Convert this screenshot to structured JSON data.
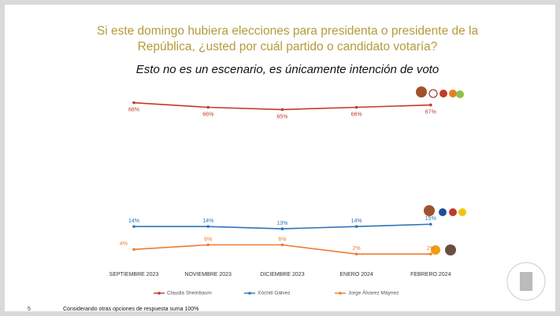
{
  "page_number": "5",
  "chart_data": {
    "type": "line",
    "title": "Si este domingo hubiera elecciones para presidenta o presidente de la República, ¿usted por cuál partido o candidato votaría?",
    "subtitle": "Esto no es un escenario, es únicamente intención de voto",
    "note": "Considerando otras opciones de respuesta suma 100%",
    "categories": [
      "SEPTIEMBRE 2023",
      "NOVIEMBRE 2023",
      "DICIEMBRE 2023",
      "ENERO 2024",
      "FEBRERO 2024"
    ],
    "ylim": [
      0,
      72
    ],
    "legend": "bottom",
    "series": [
      {
        "name": "Claudia Sheinbaum",
        "color": "#c0392b",
        "values": [
          68,
          66,
          65,
          66,
          67
        ],
        "value_labels": [
          "68%",
          "66%",
          "65%",
          "66%",
          "67%"
        ]
      },
      {
        "name": "Xóchitl Gálvez",
        "color": "#2e75b6",
        "values": [
          14,
          14,
          13,
          14,
          15
        ],
        "value_labels": [
          "14%",
          "14%",
          "13%",
          "14%",
          "15%"
        ]
      },
      {
        "name": "Jorge Álvarez Máynez",
        "color": "#ed7d31",
        "values": [
          4,
          6,
          6,
          2,
          2
        ],
        "value_labels": [
          "4%",
          "6%",
          "6%",
          "2%",
          "2%"
        ]
      }
    ]
  }
}
